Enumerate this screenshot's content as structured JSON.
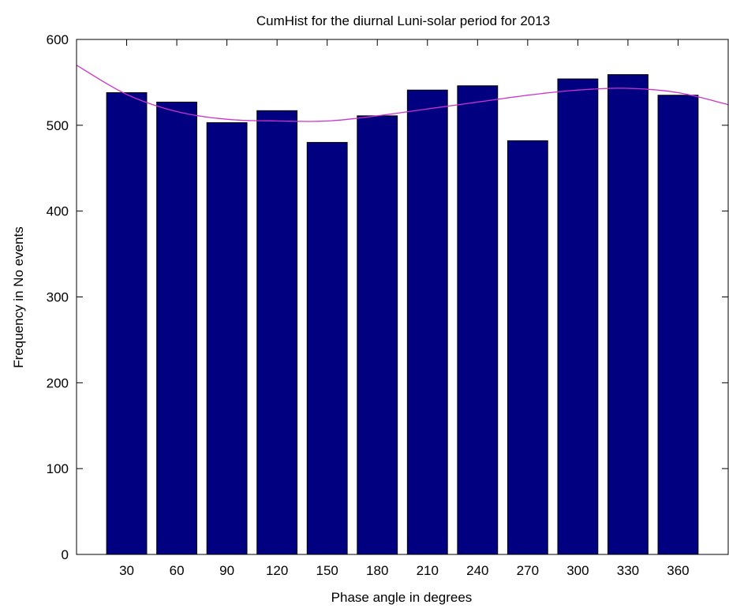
{
  "chart_data": {
    "type": "bar",
    "title": "CumHist for the diurnal Luni-solar period for 2013",
    "xlabel": "Phase angle in degrees",
    "ylabel": "Frequency in No events",
    "categories": [
      "30",
      "60",
      "90",
      "120",
      "150",
      "180",
      "210",
      "240",
      "270",
      "300",
      "330",
      "360"
    ],
    "x": [
      30,
      60,
      90,
      120,
      150,
      180,
      210,
      240,
      270,
      300,
      330,
      360
    ],
    "values": [
      538,
      527,
      503,
      517,
      480,
      511,
      541,
      546,
      482,
      554,
      559,
      535
    ],
    "xlim": [
      0,
      390
    ],
    "ylim": [
      0,
      600
    ],
    "yticks": [
      0,
      100,
      200,
      300,
      400,
      500,
      600
    ],
    "grid": false,
    "legend": "none",
    "bar_color": "#000080",
    "fit_curve": {
      "color": "#cc33cc",
      "x": [
        0,
        30,
        60,
        90,
        120,
        150,
        180,
        210,
        240,
        270,
        300,
        330,
        360,
        390
      ],
      "y": [
        570,
        536,
        516,
        507,
        505,
        505,
        511,
        519,
        527,
        535,
        541,
        543,
        538,
        524
      ]
    }
  }
}
